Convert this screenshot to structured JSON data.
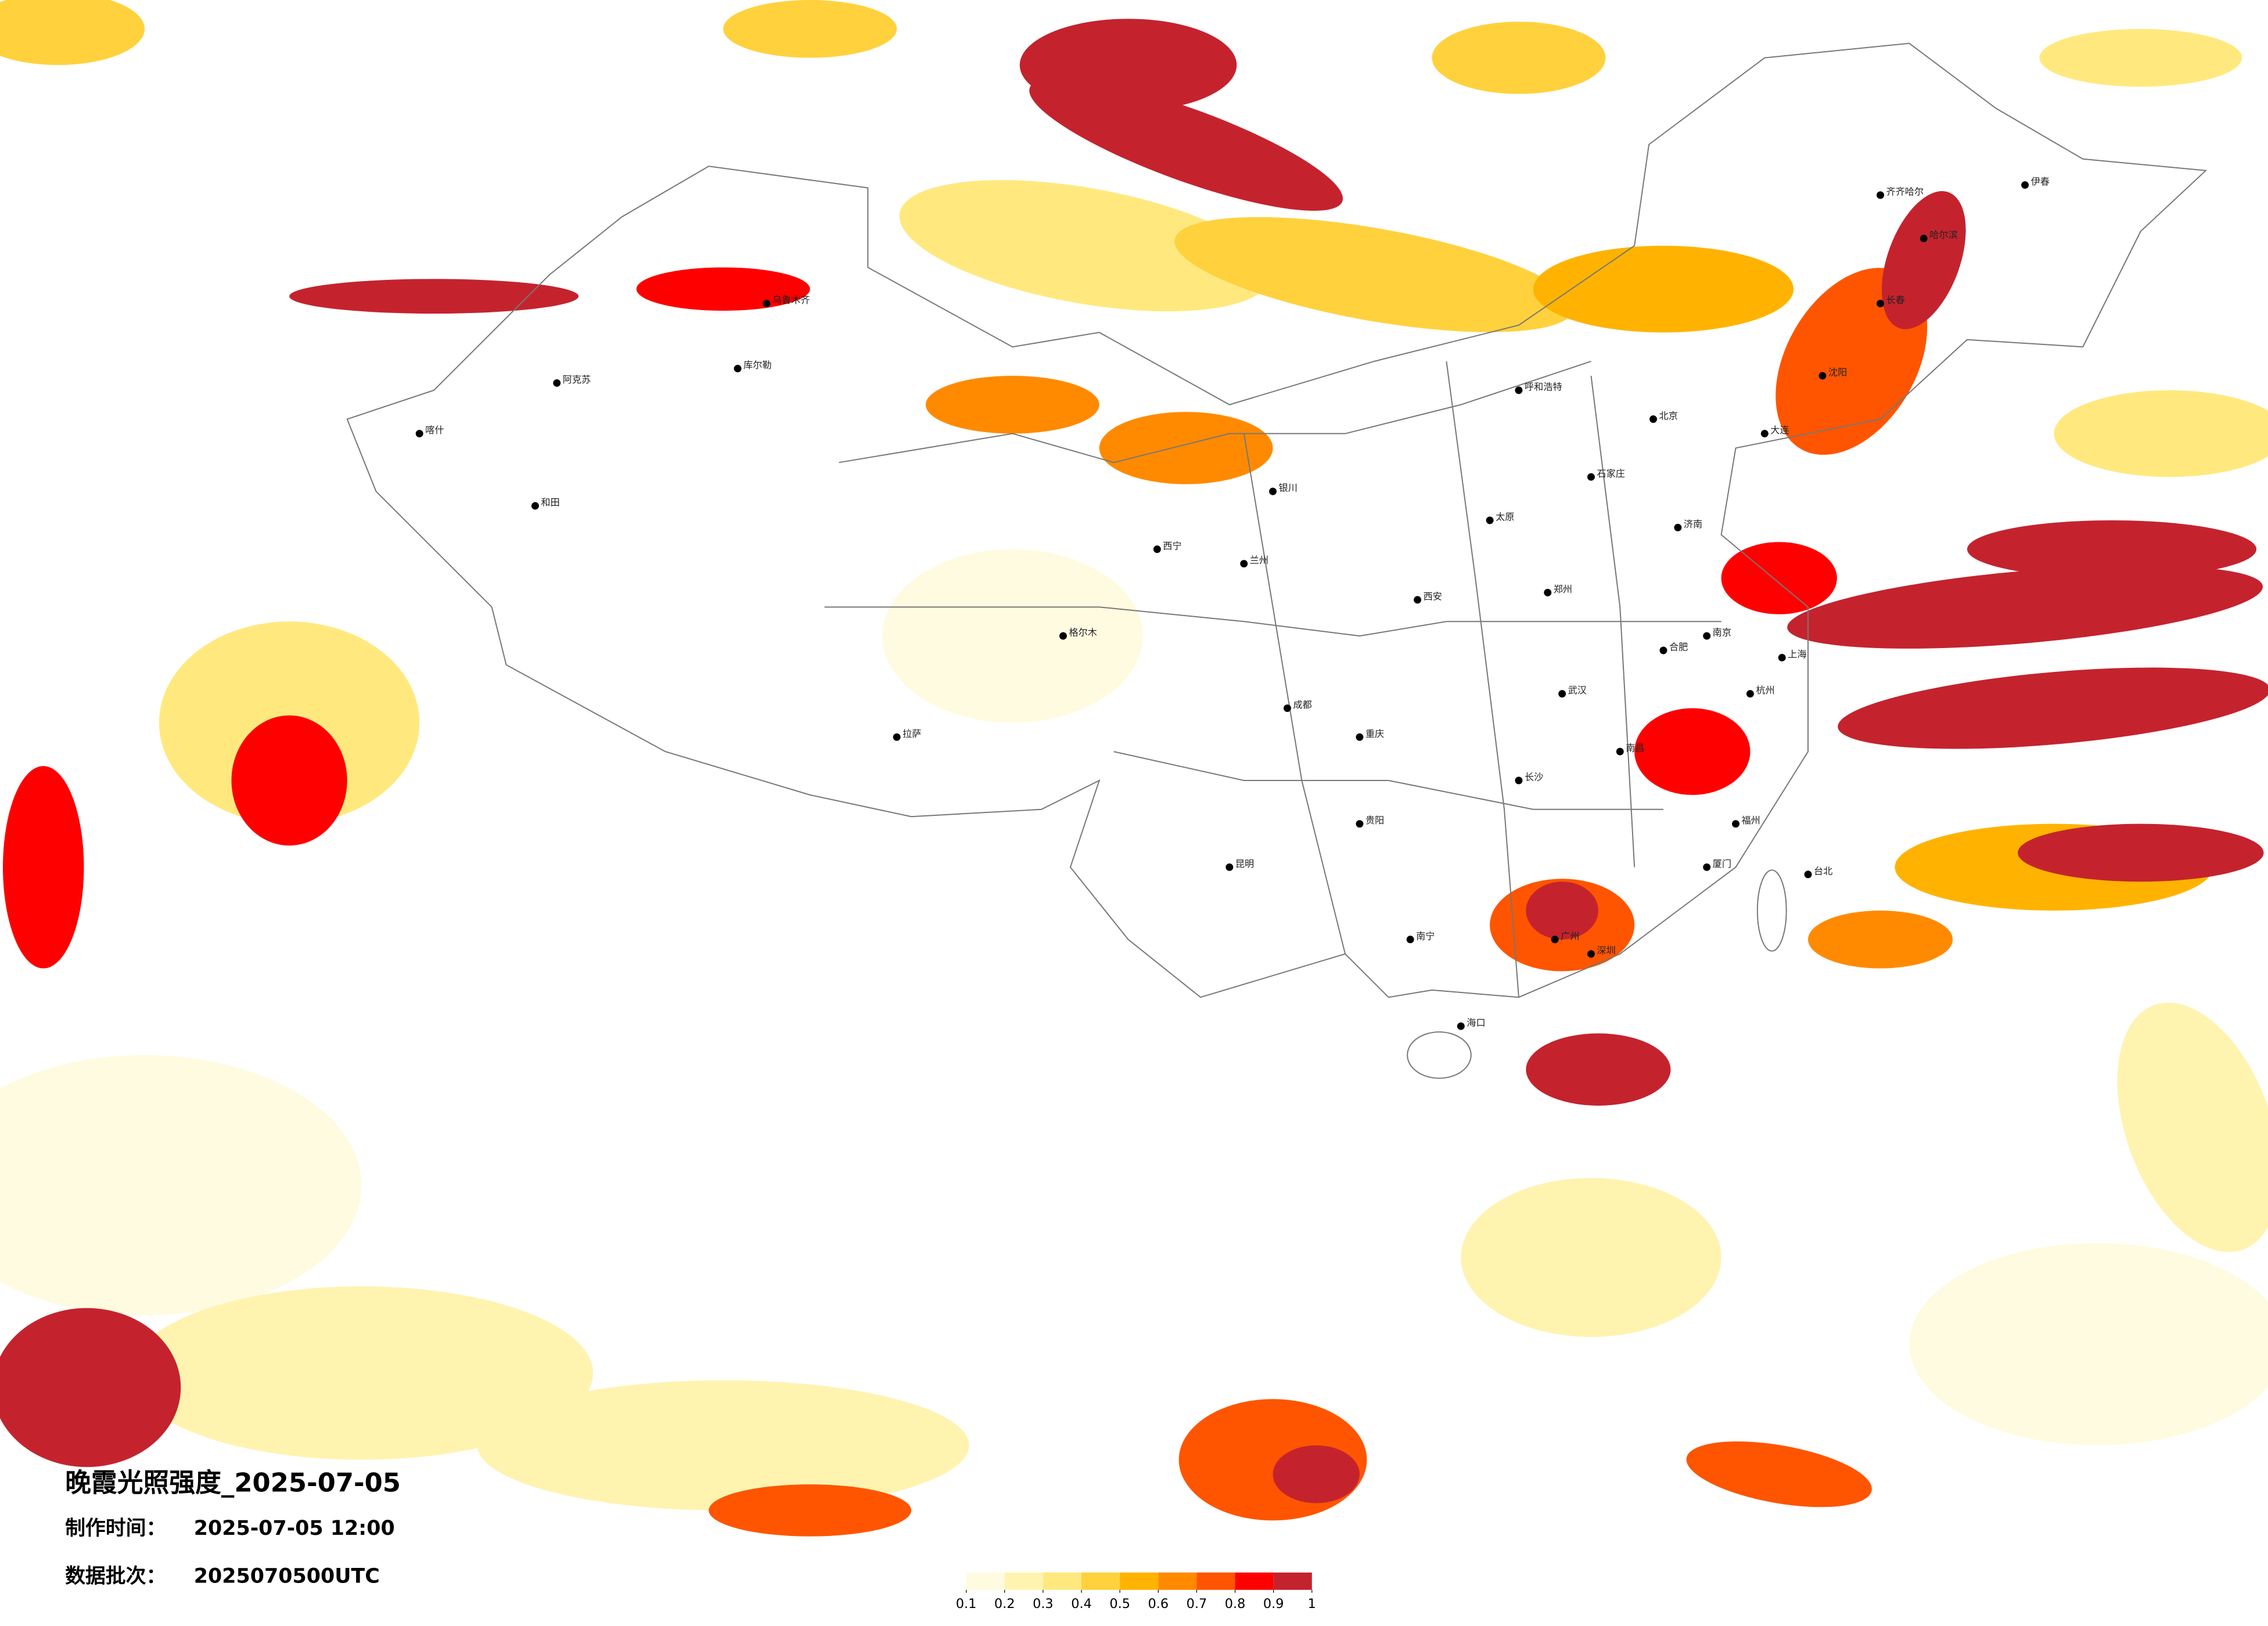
{
  "title": "晚霞光照强度_2025-07-05",
  "made_time": {
    "label": "制作时间：",
    "value": "2025-07-05 12:00"
  },
  "batch": {
    "label": "数据批次：",
    "value": "2025070500UTC"
  },
  "legend": {
    "ticks": [
      0.1,
      0.2,
      0.3,
      0.4,
      0.5,
      0.6,
      0.7,
      0.8,
      0.9,
      1
    ],
    "colors": [
      "#fffbe0",
      "#fff3b0",
      "#ffe97f",
      "#ffd13d",
      "#ffb300",
      "#ff8a00",
      "#ff5500",
      "#ff0000",
      "#c4232e"
    ]
  },
  "cities": [
    "北京",
    "上海",
    "广州",
    "深圳",
    "海口",
    "南宁",
    "昆明",
    "贵阳",
    "成都",
    "重庆",
    "西安",
    "兰州",
    "西宁",
    "拉萨",
    "乌鲁木齐",
    "喀什",
    "和田",
    "哈尔滨",
    "长春",
    "沈阳",
    "大连",
    "呼和浩特",
    "银川",
    "太原",
    "石家庄",
    "济南",
    "郑州",
    "武汉",
    "长沙",
    "南昌",
    "杭州",
    "南京",
    "合肥",
    "福州",
    "台北",
    "厦门",
    "格尔木",
    "伊春",
    "齐齐哈尔",
    "库尔勒",
    "阿克苏"
  ]
}
